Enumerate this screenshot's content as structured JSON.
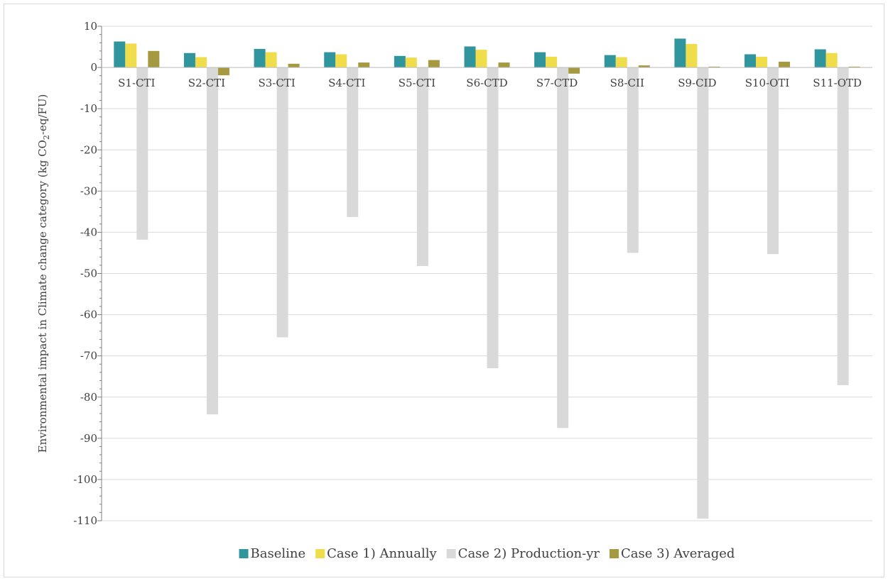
{
  "chart_data": {
    "type": "bar",
    "title": "",
    "xlabel": "",
    "ylabel_prefix": "Environmental impact in Climate change category  (kg CO",
    "ylabel_sub": "2",
    "ylabel_suffix": "-eq/FU)",
    "ylim": [
      -110,
      10
    ],
    "yticks": [
      10,
      0,
      -10,
      -20,
      -30,
      -40,
      -50,
      -60,
      -70,
      -80,
      -90,
      -100,
      -110
    ],
    "grid": true,
    "legend_position": "bottom",
    "categories": [
      "S1-CTI",
      "S2-CTI",
      "S3-CTI",
      "S4-CTI",
      "S5-CTI",
      "S6-CTD",
      "S7-CTD",
      "S8-CII",
      "S9-CID",
      "S10-OTI",
      "S11-OTD"
    ],
    "series": [
      {
        "name": "Baseline",
        "color": "#31959e",
        "values": [
          6.3,
          3.5,
          4.5,
          3.7,
          2.8,
          5.1,
          3.7,
          3.0,
          7.0,
          3.2,
          4.4
        ]
      },
      {
        "name": "Case 1) Annually",
        "color": "#f0dd4b",
        "values": [
          5.8,
          2.5,
          3.7,
          3.2,
          2.4,
          4.3,
          2.6,
          2.5,
          5.7,
          2.6,
          3.5
        ]
      },
      {
        "name": "Case 2) Production-yr",
        "color": "#d9d9d9",
        "values": [
          -41.8,
          -84.2,
          -65.5,
          -36.3,
          -48.2,
          -73.0,
          -87.5,
          -45.0,
          -109.5,
          -45.3,
          -77.1
        ]
      },
      {
        "name": "Case 3) Averaged",
        "color": "#a69a40",
        "values": [
          4.0,
          -1.9,
          0.9,
          1.2,
          1.8,
          1.2,
          -1.5,
          0.5,
          0.2,
          1.4,
          0.2
        ]
      }
    ]
  }
}
